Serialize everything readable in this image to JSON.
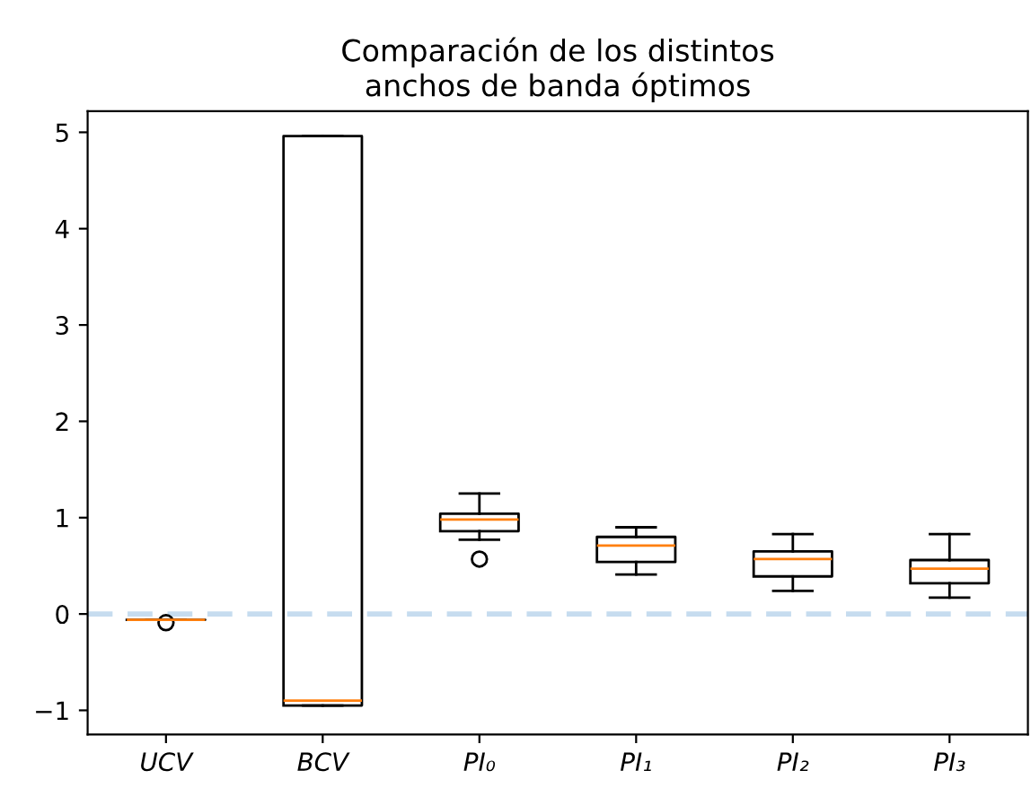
{
  "chart_data": {
    "type": "box",
    "title": "Comparación de los distintos\nanchos de banda óptimos",
    "categories": [
      "UCV",
      "BCV",
      "PI₀",
      "PI₁",
      "PI₂",
      "PI₃"
    ],
    "boxes": [
      {
        "low": -0.06,
        "q1": -0.06,
        "median": -0.06,
        "q3": -0.06,
        "high": -0.06,
        "outliers": [
          -0.09
        ]
      },
      {
        "low": -0.95,
        "q1": -0.95,
        "median": -0.9,
        "q3": 4.96,
        "high": 4.96
      },
      {
        "low": 0.77,
        "q1": 0.86,
        "median": 0.98,
        "q3": 1.04,
        "high": 1.25,
        "outliers": [
          0.57
        ]
      },
      {
        "low": 0.41,
        "q1": 0.54,
        "median": 0.71,
        "q3": 0.8,
        "high": 0.9
      },
      {
        "low": 0.24,
        "q1": 0.39,
        "median": 0.57,
        "q3": 0.65,
        "high": 0.83
      },
      {
        "low": 0.17,
        "q1": 0.32,
        "median": 0.47,
        "q3": 0.56,
        "high": 0.83
      }
    ],
    "ylim": [
      -1.25,
      5.22
    ],
    "yticks": [
      {
        "value": -1,
        "label": "−1"
      },
      0,
      1,
      2,
      3,
      4,
      5
    ],
    "ref_lines": [
      {
        "axis": "y",
        "value": 0,
        "color": "#c6dcef",
        "line_style": "dashed"
      }
    ],
    "grid": false
  }
}
